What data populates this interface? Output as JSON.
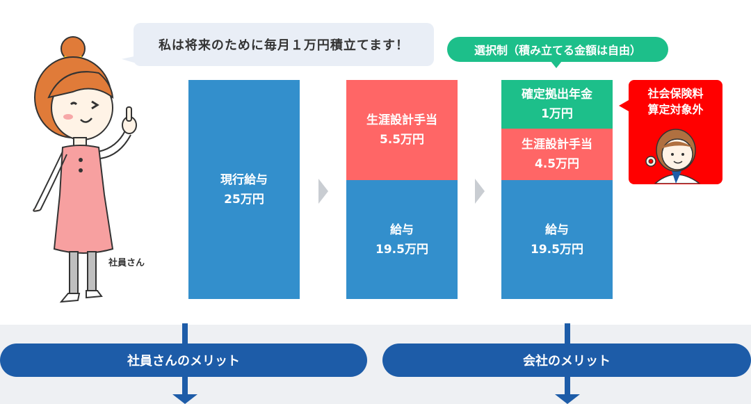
{
  "employee": {
    "speech": "私は将来のために毎月１万円積立てます！",
    "label": "社員さん"
  },
  "selection_note": "選択制（積み立てる金額は自由）",
  "columns": [
    {
      "segments": [
        {
          "name": "現行給与",
          "amount": "25万円",
          "color": "#338fcc"
        }
      ]
    },
    {
      "segments": [
        {
          "name": "生涯設計手当",
          "amount": "5.5万円",
          "color": "#ff6666"
        },
        {
          "name": "給与",
          "amount": "19.5万円",
          "color": "#338fcc"
        }
      ]
    },
    {
      "segments": [
        {
          "name": "確定拠出年金",
          "amount": "1万円",
          "color": "#1dbf8a"
        },
        {
          "name": "生涯設計手当",
          "amount": "4.5万円",
          "color": "#ff6666"
        },
        {
          "name": "給与",
          "amount": "19.5万円",
          "color": "#338fcc"
        }
      ]
    }
  ],
  "social_insurance_note": {
    "line1": "社会保険料",
    "line2": "算定対象外"
  },
  "merits": {
    "employee": "社員さんのメリット",
    "company": "会社のメリット"
  },
  "colors": {
    "salary": "#338fcc",
    "allowance": "#ff6666",
    "pension": "#1dbf8a",
    "exempt": "#ff0000",
    "merit": "#1d5ca8"
  }
}
